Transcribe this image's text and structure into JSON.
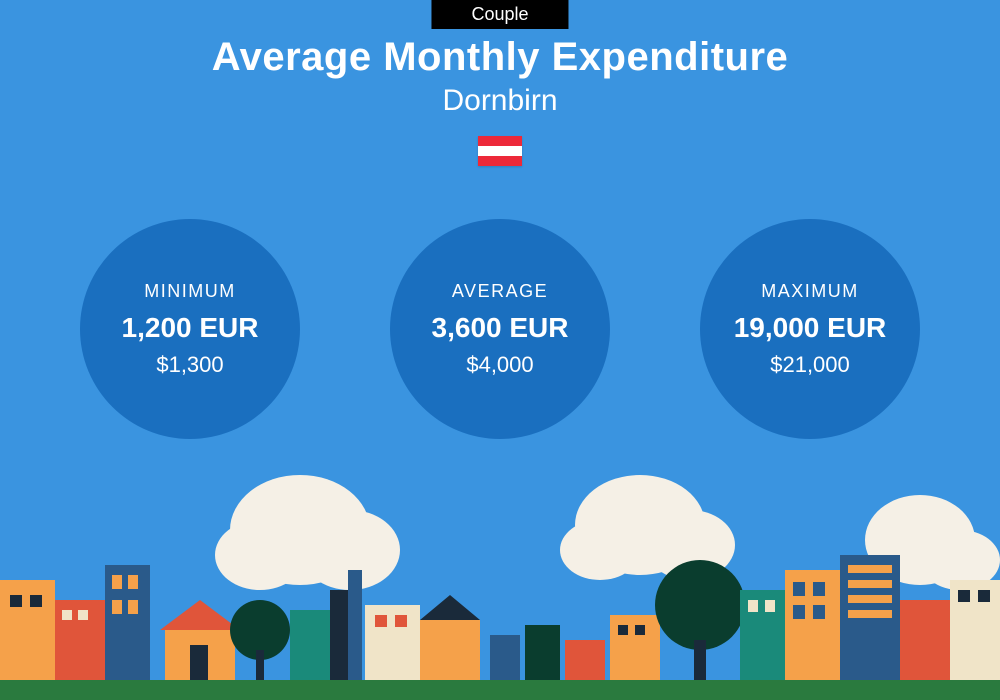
{
  "colors": {
    "background": "#3a94e0",
    "circle": "#1a6fbf",
    "tab_bg": "#000000",
    "text": "#ffffff",
    "flag_stripe": "#ed2939",
    "ground": "#2a7a3e",
    "cloud": "#f5f0e6",
    "tree_dark": "#0a3d2e",
    "tree_teal": "#1a8a7a",
    "building_orange": "#f5a14a",
    "building_red": "#e0553a",
    "building_blue": "#2a5a8a",
    "building_cream": "#f0e4c8",
    "building_dark": "#1a2a3a"
  },
  "tab": {
    "label": "Couple"
  },
  "header": {
    "title": "Average Monthly Expenditure",
    "subtitle": "Dornbirn"
  },
  "stats": [
    {
      "label": "MINIMUM",
      "primary": "1,200 EUR",
      "secondary": "$1,300"
    },
    {
      "label": "AVERAGE",
      "primary": "3,600 EUR",
      "secondary": "$4,000"
    },
    {
      "label": "MAXIMUM",
      "primary": "19,000 EUR",
      "secondary": "$21,000"
    }
  ],
  "typography": {
    "title_fontsize": 40,
    "subtitle_fontsize": 30,
    "label_fontsize": 18,
    "primary_fontsize": 28,
    "secondary_fontsize": 22
  }
}
